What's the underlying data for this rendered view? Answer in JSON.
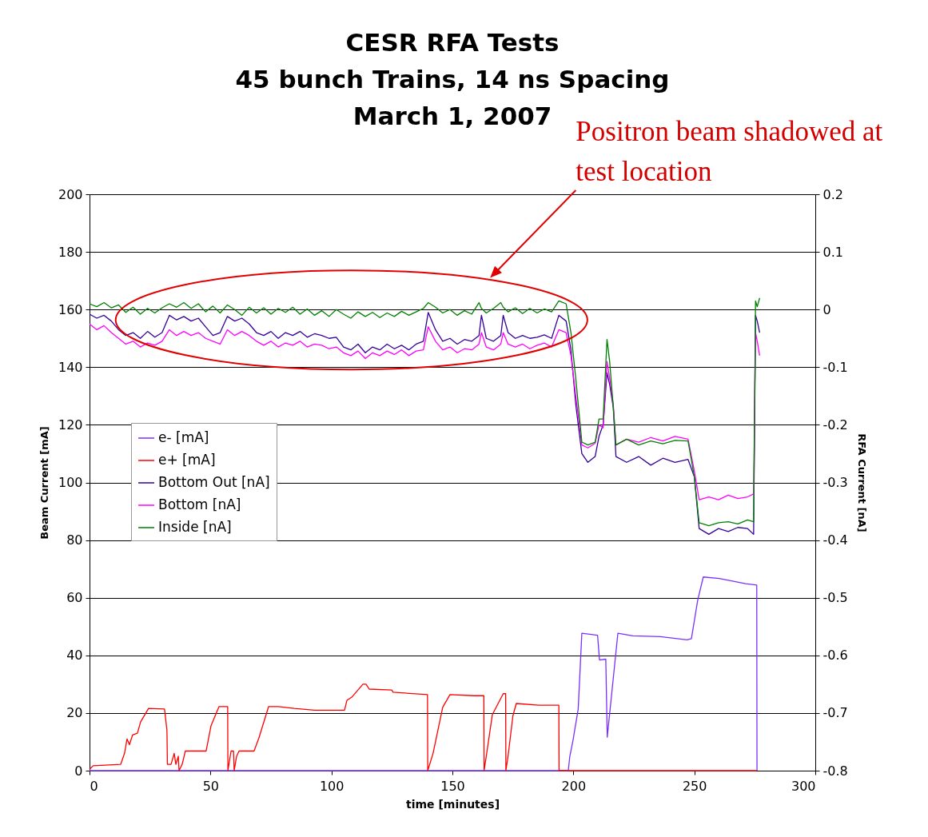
{
  "chart_data": {
    "type": "line",
    "title": "CESR RFA Tests\n45 bunch Trains, 14 ns Spacing\nMarch 1, 2007",
    "xlabel": "time [minutes]",
    "ylabel": "Beam Current [mA]",
    "y2label": "RFA Current [nA]",
    "annotations": [
      "Positron beam shadowed at test location"
    ],
    "xlim": [
      0,
      300
    ],
    "xticks": [
      0,
      50,
      100,
      150,
      200,
      250,
      300
    ],
    "ylim": [
      0,
      200
    ],
    "yticks": [
      0,
      20,
      40,
      60,
      80,
      100,
      120,
      140,
      160,
      180,
      200
    ],
    "y2lim": [
      -0.8,
      0.2
    ],
    "y2ticks": [
      -0.8,
      -0.7,
      -0.6,
      -0.5,
      -0.4,
      -0.3,
      -0.2,
      -0.1,
      0,
      0.1,
      0.2
    ],
    "grid": "y",
    "legend": "left",
    "series": [
      {
        "name": "e- [mA]",
        "color": "#7b2fff",
        "x": [
          0,
          197.9,
          198.5,
          199.8,
          202,
          203.5,
          210,
          210.8,
          213.4,
          214,
          218.4,
          224.6,
          236,
          247,
          248.8,
          251.4,
          253.7,
          260.3,
          271.2,
          275.8,
          275.9
        ],
        "values": [
          0,
          0,
          4.8,
          10.3,
          21.4,
          47.7,
          47,
          38.4,
          38.7,
          11.6,
          47.7,
          46.8,
          46.5,
          45.4,
          45.8,
          59.2,
          67.2,
          66.7,
          64.9,
          64.4,
          0
        ]
      },
      {
        "name": "e+ [mA]",
        "color": "#ff0000",
        "x": [
          0,
          1.5,
          12.9,
          14.5,
          15.5,
          16.5,
          17.8,
          19.8,
          21.1,
          24.4,
          31,
          32,
          32.2,
          33.7,
          35,
          35.7,
          36.7,
          37,
          38.3,
          39.6,
          48.2,
          50.2,
          53.5,
          57.1,
          57.2,
          58.5,
          59.5,
          59.8,
          60.8,
          61.8,
          68,
          70,
          74,
          78,
          84.6,
          93,
          105.4,
          106.4,
          108.4,
          113,
          114.3,
          115.6,
          124.9,
          125.5,
          136,
          139.7,
          139.8,
          142,
          146,
          149,
          159,
          163,
          163.1,
          164,
          166.5,
          171,
          172,
          172.1,
          173,
          175,
          176.4,
          185.7,
          194,
          194.1,
          275.8
        ],
        "values": [
          0.5,
          1.7,
          2.2,
          6.1,
          11,
          9,
          12.4,
          13,
          16.9,
          21.6,
          21.4,
          14,
          2.2,
          2.2,
          6,
          2.2,
          5,
          0,
          2.2,
          6.8,
          6.8,
          15.5,
          22.2,
          22.2,
          0,
          6.8,
          6.8,
          0,
          5,
          6.8,
          6.8,
          11.3,
          22.2,
          22.2,
          21.6,
          21,
          21,
          24.4,
          25.5,
          30,
          30,
          28.3,
          28,
          27.2,
          26.6,
          26.4,
          0,
          6,
          22,
          26.4,
          26,
          26,
          0,
          5,
          19.4,
          26.7,
          26.7,
          0,
          5,
          19,
          23.3,
          22.7,
          22.7,
          0,
          0
        ]
      },
      {
        "name": "Bottom Out [nA]",
        "color": "#330099",
        "axis": "y2",
        "x": [
          0,
          3,
          6,
          9,
          12,
          15,
          18,
          21,
          24,
          27,
          30,
          33,
          36,
          39,
          42,
          45,
          48,
          51,
          54,
          57,
          60,
          63,
          66,
          69,
          72,
          75,
          78,
          81,
          84,
          87,
          90,
          93,
          96,
          99,
          102,
          105,
          108,
          111,
          114,
          117,
          120,
          123,
          126,
          129,
          132,
          135,
          138,
          140,
          143,
          146,
          149,
          152,
          155,
          158,
          161,
          162,
          164,
          167,
          170,
          171,
          173,
          176,
          179,
          182,
          185,
          188,
          191,
          194,
          197,
          199,
          201,
          203.5,
          206,
          209,
          210.6,
          212.3,
          213.9,
          215,
          216.5,
          217.6,
          222,
          227,
          232,
          237,
          242,
          247.4,
          250,
          252,
          256,
          260,
          264,
          268,
          272,
          274.5,
          275.3,
          276,
          277
        ],
        "values": [
          -0.008,
          -0.015,
          -0.01,
          -0.02,
          -0.035,
          -0.045,
          -0.04,
          -0.05,
          -0.038,
          -0.048,
          -0.04,
          -0.01,
          -0.018,
          -0.012,
          -0.02,
          -0.015,
          -0.03,
          -0.045,
          -0.04,
          -0.012,
          -0.02,
          -0.015,
          -0.025,
          -0.04,
          -0.045,
          -0.038,
          -0.05,
          -0.04,
          -0.045,
          -0.038,
          -0.048,
          -0.042,
          -0.045,
          -0.05,
          -0.048,
          -0.065,
          -0.07,
          -0.06,
          -0.075,
          -0.065,
          -0.07,
          -0.06,
          -0.068,
          -0.062,
          -0.07,
          -0.06,
          -0.055,
          -0.005,
          -0.035,
          -0.055,
          -0.05,
          -0.06,
          -0.052,
          -0.055,
          -0.045,
          -0.01,
          -0.05,
          -0.055,
          -0.045,
          -0.01,
          -0.04,
          -0.05,
          -0.045,
          -0.05,
          -0.048,
          -0.044,
          -0.05,
          -0.01,
          -0.02,
          -0.07,
          -0.165,
          -0.25,
          -0.265,
          -0.255,
          -0.22,
          -0.2,
          -0.11,
          -0.13,
          -0.17,
          -0.255,
          -0.265,
          -0.255,
          -0.27,
          -0.258,
          -0.265,
          -0.26,
          -0.29,
          -0.38,
          -0.39,
          -0.38,
          -0.385,
          -0.378,
          -0.38,
          -0.39,
          -0.01,
          -0.02,
          -0.04
        ]
      },
      {
        "name": "Bottom [nA]",
        "color": "#ff00ff",
        "axis": "y2",
        "x": [
          0,
          3,
          6,
          9,
          12,
          15,
          18,
          21,
          24,
          27,
          30,
          33,
          36,
          39,
          42,
          45,
          48,
          51,
          54,
          57,
          60,
          63,
          66,
          69,
          72,
          75,
          78,
          81,
          84,
          87,
          90,
          93,
          96,
          99,
          102,
          105,
          108,
          111,
          114,
          117,
          120,
          123,
          126,
          129,
          132,
          135,
          138,
          140,
          143,
          146,
          149,
          152,
          155,
          158,
          161,
          162,
          164,
          167,
          170,
          171,
          173,
          176,
          179,
          182,
          185,
          188,
          191,
          194,
          197,
          199,
          201,
          203.5,
          206,
          209,
          210.6,
          212.3,
          213.9,
          215,
          216.5,
          217.6,
          222,
          227,
          232,
          237,
          242,
          247.4,
          250,
          252,
          256,
          260,
          264,
          268,
          272,
          274.5,
          275.3,
          276,
          277
        ],
        "values": [
          -0.025,
          -0.035,
          -0.028,
          -0.04,
          -0.05,
          -0.06,
          -0.055,
          -0.065,
          -0.058,
          -0.062,
          -0.055,
          -0.035,
          -0.045,
          -0.038,
          -0.045,
          -0.04,
          -0.05,
          -0.055,
          -0.06,
          -0.035,
          -0.045,
          -0.038,
          -0.045,
          -0.055,
          -0.062,
          -0.055,
          -0.065,
          -0.058,
          -0.062,
          -0.055,
          -0.065,
          -0.06,
          -0.062,
          -0.068,
          -0.065,
          -0.075,
          -0.08,
          -0.072,
          -0.085,
          -0.075,
          -0.08,
          -0.072,
          -0.078,
          -0.07,
          -0.08,
          -0.072,
          -0.07,
          -0.03,
          -0.055,
          -0.07,
          -0.065,
          -0.075,
          -0.068,
          -0.07,
          -0.06,
          -0.04,
          -0.065,
          -0.07,
          -0.06,
          -0.04,
          -0.06,
          -0.065,
          -0.06,
          -0.068,
          -0.062,
          -0.058,
          -0.065,
          -0.035,
          -0.04,
          -0.08,
          -0.15,
          -0.235,
          -0.24,
          -0.232,
          -0.2,
          -0.205,
          -0.09,
          -0.12,
          -0.165,
          -0.235,
          -0.225,
          -0.23,
          -0.222,
          -0.228,
          -0.22,
          -0.225,
          -0.28,
          -0.33,
          -0.325,
          -0.33,
          -0.322,
          -0.328,
          -0.325,
          -0.32,
          -0.04,
          -0.055,
          -0.08
        ]
      },
      {
        "name": "Inside [nA]",
        "color": "#008000",
        "axis": "y2",
        "x": [
          0,
          3,
          6,
          9,
          12,
          15,
          18,
          21,
          24,
          27,
          30,
          33,
          36,
          39,
          42,
          45,
          48,
          51,
          54,
          57,
          60,
          63,
          66,
          69,
          72,
          75,
          78,
          81,
          84,
          87,
          90,
          93,
          96,
          99,
          102,
          105,
          108,
          111,
          114,
          117,
          120,
          123,
          126,
          129,
          132,
          135,
          138,
          140,
          143,
          146,
          149,
          152,
          155,
          158,
          161,
          162,
          164,
          167,
          170,
          171,
          173,
          176,
          179,
          182,
          185,
          188,
          191,
          194,
          197,
          199,
          201,
          203.5,
          206,
          209,
          210.6,
          212.3,
          213.9,
          215,
          216.5,
          217.6,
          222,
          227,
          232,
          237,
          242,
          247.4,
          250,
          252,
          256,
          260,
          264,
          268,
          272,
          274.5,
          275.3,
          276,
          277
        ],
        "values": [
          0.01,
          0.005,
          0.012,
          0.003,
          0.008,
          -0.005,
          0.004,
          -0.008,
          0.002,
          -0.006,
          0.003,
          0.01,
          0.004,
          0.012,
          0.002,
          0.01,
          -0.004,
          0.006,
          -0.006,
          0.008,
          0,
          -0.01,
          0.004,
          -0.006,
          0.003,
          -0.008,
          0.002,
          -0.005,
          0.004,
          -0.008,
          0.001,
          -0.01,
          -0.002,
          -0.012,
          0,
          -0.008,
          -0.015,
          -0.004,
          -0.012,
          -0.005,
          -0.014,
          -0.006,
          -0.012,
          -0.003,
          -0.01,
          -0.004,
          0.002,
          0.012,
          0.004,
          -0.006,
          0,
          -0.01,
          -0.002,
          -0.008,
          0.012,
          0.002,
          -0.006,
          0.002,
          0.012,
          0.004,
          -0.004,
          0.003,
          -0.007,
          0.002,
          -0.006,
          0.001,
          -0.004,
          0.015,
          0.01,
          -0.04,
          -0.12,
          -0.23,
          -0.235,
          -0.23,
          -0.19,
          -0.19,
          -0.052,
          -0.09,
          -0.17,
          -0.235,
          -0.225,
          -0.235,
          -0.228,
          -0.233,
          -0.227,
          -0.228,
          -0.29,
          -0.37,
          -0.375,
          -0.37,
          -0.368,
          -0.372,
          -0.365,
          -0.368,
          0.015,
          0.005,
          0.02
        ]
      }
    ]
  }
}
